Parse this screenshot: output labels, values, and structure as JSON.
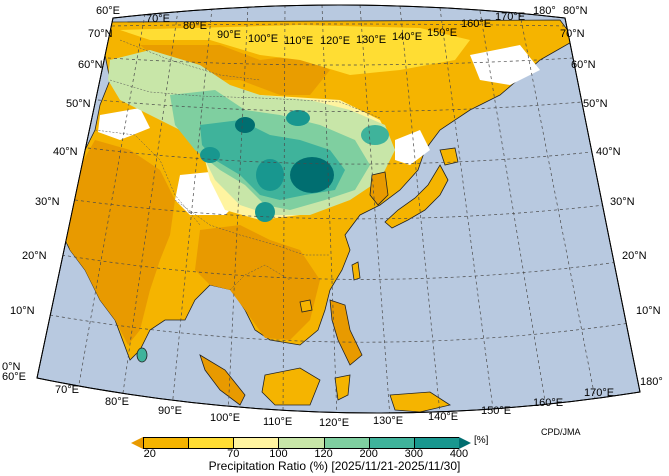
{
  "map": {
    "credit": "CPD/JMA",
    "caption": "Precipitation Ratio (%) [2025/11/21-2025/11/30]",
    "unit": "[%]",
    "lon_labels": [
      "60°E",
      "70°E",
      "80°E",
      "90°E",
      "100°E",
      "110°E",
      "120°E",
      "130°E",
      "140°E",
      "150°E",
      "160°E",
      "170°E",
      "180°"
    ],
    "lat_labels": [
      "0°N",
      "10°N",
      "20°N",
      "30°N",
      "40°N",
      "50°N",
      "60°N",
      "70°N",
      "80°N"
    ],
    "ocean_color": "#b8c9e0",
    "nodata_color": "#ffffff",
    "legend": {
      "thresholds": [
        "20",
        "70",
        "100",
        "120",
        "200",
        "300",
        "400"
      ],
      "colors": [
        "#e89a00",
        "#f5b400",
        "#ffdd33",
        "#fff4a0",
        "#c8e6a8",
        "#7fcfa0",
        "#3fb39b",
        "#18978f",
        "#006e70"
      ]
    }
  }
}
